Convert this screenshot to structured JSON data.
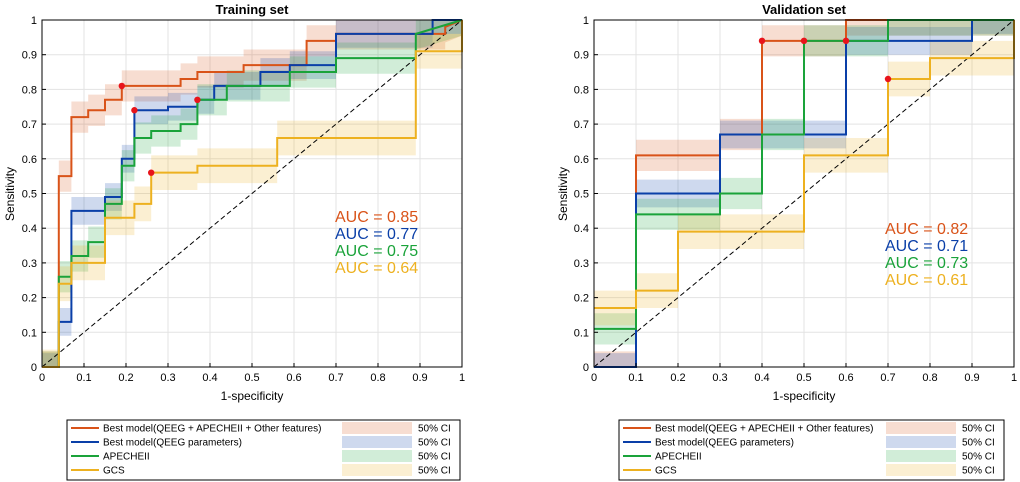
{
  "colors": {
    "best_all": "#D95319",
    "best_qeeg": "#0A3FA8",
    "apache": "#1AA33A",
    "gcs": "#EDB120",
    "marker": "#E8141B"
  },
  "chart_data": [
    {
      "type": "line",
      "title": "Training set",
      "xlabel": "1-specificity",
      "ylabel": "Sensitivity",
      "xlim": [
        0,
        1
      ],
      "ylim": [
        0,
        1
      ],
      "grid": true,
      "diagonal": true,
      "xticks": [
        "0",
        "0.1",
        "0.2",
        "0.3",
        "0.4",
        "0.5",
        "0.6",
        "0.7",
        "0.8",
        "0.9",
        "1"
      ],
      "yticks": [
        "0",
        "0.1",
        "0.2",
        "0.3",
        "0.4",
        "0.5",
        "0.6",
        "0.7",
        "0.8",
        "0.9",
        "1"
      ],
      "series": [
        {
          "name": "Best model(QEEG + APECHEII + Other features)",
          "key": "best_all",
          "auc": "AUC = 0.85",
          "x": [
            0,
            0.04,
            0.04,
            0.07,
            0.07,
            0.11,
            0.11,
            0.15,
            0.15,
            0.19,
            0.19,
            0.33,
            0.33,
            0.37,
            0.37,
            0.48,
            0.48,
            0.63,
            0.63,
            0.7,
            0.7,
            0.96,
            0.96,
            1
          ],
          "y": [
            0,
            0,
            0.55,
            0.55,
            0.72,
            0.72,
            0.74,
            0.74,
            0.77,
            0.77,
            0.81,
            0.81,
            0.83,
            0.83,
            0.85,
            0.85,
            0.87,
            0.87,
            0.94,
            0.94,
            0.96,
            0.96,
            0.98,
            1
          ],
          "opt": [
            0.19,
            0.81
          ]
        },
        {
          "name": "Best model(QEEG parameters)",
          "key": "best_qeeg",
          "auc": "AUC = 0.77",
          "x": [
            0,
            0.04,
            0.04,
            0.07,
            0.07,
            0.15,
            0.15,
            0.19,
            0.19,
            0.22,
            0.22,
            0.3,
            0.3,
            0.37,
            0.37,
            0.41,
            0.41,
            0.52,
            0.52,
            0.59,
            0.59,
            0.7,
            0.7,
            0.93,
            0.93,
            1
          ],
          "y": [
            0,
            0,
            0.13,
            0.13,
            0.45,
            0.45,
            0.49,
            0.49,
            0.6,
            0.6,
            0.74,
            0.74,
            0.75,
            0.75,
            0.77,
            0.77,
            0.81,
            0.81,
            0.85,
            0.85,
            0.87,
            0.87,
            0.96,
            0.96,
            1,
            1
          ],
          "opt": [
            0.22,
            0.74
          ]
        },
        {
          "name": "APECHEII",
          "key": "apache",
          "auc": "AUC = 0.75",
          "x": [
            0,
            0.04,
            0.04,
            0.07,
            0.07,
            0.11,
            0.11,
            0.15,
            0.15,
            0.19,
            0.19,
            0.22,
            0.22,
            0.26,
            0.26,
            0.33,
            0.33,
            0.37,
            0.37,
            0.44,
            0.44,
            0.59,
            0.59,
            0.7,
            0.7,
            0.89,
            0.89,
            1
          ],
          "y": [
            0,
            0,
            0.26,
            0.26,
            0.32,
            0.32,
            0.36,
            0.36,
            0.47,
            0.47,
            0.58,
            0.58,
            0.66,
            0.66,
            0.68,
            0.68,
            0.7,
            0.7,
            0.77,
            0.77,
            0.81,
            0.81,
            0.85,
            0.85,
            0.89,
            0.89,
            0.96,
            1
          ],
          "opt": [
            0.37,
            0.77
          ]
        },
        {
          "name": "GCS",
          "key": "gcs",
          "auc": "AUC = 0.64",
          "x": [
            0,
            0.04,
            0.04,
            0.07,
            0.07,
            0.15,
            0.15,
            0.22,
            0.22,
            0.26,
            0.26,
            0.37,
            0.37,
            0.56,
            0.56,
            0.89,
            0.89,
            1,
            1
          ],
          "y": [
            0,
            0,
            0.24,
            0.24,
            0.3,
            0.3,
            0.43,
            0.43,
            0.47,
            0.47,
            0.56,
            0.56,
            0.58,
            0.58,
            0.66,
            0.66,
            0.91,
            0.91,
            1
          ],
          "opt": [
            0.26,
            0.56
          ]
        }
      ]
    },
    {
      "type": "line",
      "title": "Validation set",
      "xlabel": "1-specificity",
      "ylabel": "Sensitivity",
      "xlim": [
        0,
        1
      ],
      "ylim": [
        0,
        1
      ],
      "grid": true,
      "diagonal": true,
      "xticks": [
        "0",
        "0.1",
        "0.2",
        "0.3",
        "0.4",
        "0.5",
        "0.6",
        "0.7",
        "0.8",
        "0.9",
        "1"
      ],
      "yticks": [
        "0",
        "0.1",
        "0.2",
        "0.3",
        "0.4",
        "0.5",
        "0.6",
        "0.7",
        "0.8",
        "0.9",
        "1"
      ],
      "series": [
        {
          "name": "Best model(QEEG + APECHEII + Other features)",
          "key": "best_all",
          "auc": "AUC = 0.82",
          "x": [
            0,
            0.1,
            0.1,
            0.3,
            0.3,
            0.4,
            0.4,
            0.6,
            0.6,
            1
          ],
          "y": [
            0,
            0,
            0.61,
            0.61,
            0.67,
            0.67,
            0.94,
            0.94,
            1,
            1
          ],
          "opt": [
            0.4,
            0.94
          ]
        },
        {
          "name": "Best model(QEEG parameters)",
          "key": "best_qeeg",
          "auc": "AUC = 0.71",
          "x": [
            0,
            0.1,
            0.1,
            0.3,
            0.3,
            0.6,
            0.6,
            0.9,
            0.9,
            1
          ],
          "y": [
            0,
            0,
            0.5,
            0.5,
            0.67,
            0.67,
            0.94,
            0.94,
            1,
            1
          ],
          "opt": [
            0.6,
            0.94
          ]
        },
        {
          "name": "APECHEII",
          "key": "apache",
          "auc": "AUC = 0.73",
          "x": [
            0,
            0.1,
            0.1,
            0.3,
            0.3,
            0.4,
            0.4,
            0.5,
            0.5,
            0.7,
            0.7,
            1
          ],
          "y": [
            0.11,
            0.11,
            0.44,
            0.44,
            0.5,
            0.5,
            0.67,
            0.67,
            0.94,
            0.94,
            1,
            1
          ],
          "opt": [
            0.5,
            0.94
          ]
        },
        {
          "name": "GCS",
          "key": "gcs",
          "auc": "AUC = 0.61",
          "x": [
            0,
            0.1,
            0.1,
            0.2,
            0.2,
            0.5,
            0.5,
            0.7,
            0.7,
            0.8,
            0.8,
            1,
            1
          ],
          "y": [
            0.17,
            0.17,
            0.22,
            0.22,
            0.39,
            0.39,
            0.61,
            0.61,
            0.83,
            0.83,
            0.89,
            0.89,
            1
          ],
          "opt": [
            0.7,
            0.83
          ]
        }
      ]
    }
  ],
  "legend": {
    "ci_label": "50% CI",
    "entries": [
      {
        "name": "Best model(QEEG + APECHEII + Other features)",
        "key": "best_all"
      },
      {
        "name": "Best model(QEEG parameters)",
        "key": "best_qeeg"
      },
      {
        "name": "APECHEII",
        "key": "apache"
      },
      {
        "name": "GCS",
        "key": "gcs"
      }
    ]
  }
}
